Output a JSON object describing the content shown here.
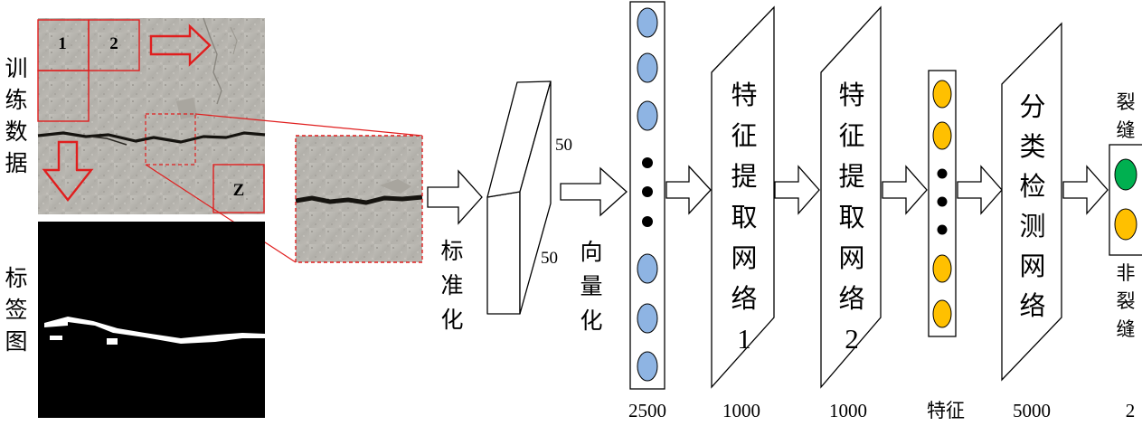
{
  "labels": {
    "training_data": [
      "训",
      "练",
      "数",
      "据"
    ],
    "label_map": [
      "标",
      "签",
      "图"
    ],
    "tiles": [
      "1",
      "2",
      "Z"
    ],
    "normalize": [
      "标",
      "准",
      "化"
    ],
    "patch_dims": [
      "50",
      "50"
    ],
    "vectorize": [
      "向",
      "量",
      "化"
    ],
    "fe1": [
      "特",
      "征",
      "提",
      "取",
      "网",
      "络",
      "1"
    ],
    "fe2": [
      "特",
      "征",
      "提",
      "取",
      "网",
      "络",
      "2"
    ],
    "classifier": [
      "分",
      "类",
      "检",
      "测",
      "网",
      "络"
    ],
    "out_crack": [
      "裂",
      "缝"
    ],
    "out_noncrack": [
      "非",
      "裂",
      "缝"
    ],
    "bottom": [
      "2500",
      "1000",
      "1000",
      "特征",
      "5000",
      "2"
    ]
  },
  "colors": {
    "red": "#e01e1e",
    "node_blue": "#8eb4e3",
    "node_yellow": "#ffc000",
    "node_green": "#00b050",
    "ink": "#000000",
    "concrete": "#b4b2ac"
  }
}
